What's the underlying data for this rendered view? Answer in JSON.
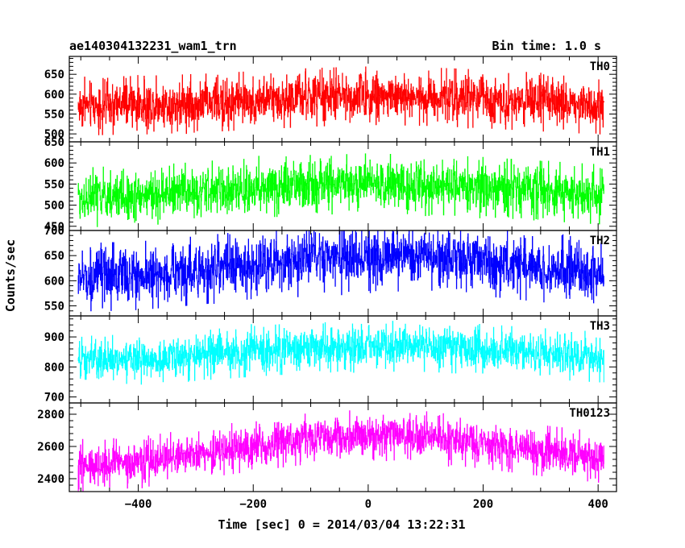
{
  "header": {
    "title": "ae140304132231_wam1_trn",
    "bin_time": "Bin time: 1.0 s"
  },
  "axes": {
    "xlabel": "Time [sec] 0 = 2014/03/04 13:22:31",
    "ylabel": "Counts/sec"
  },
  "chart_data": {
    "type": "line",
    "title": "ae140304132231_wam1_trn",
    "subtitle": "Bin time: 1.0 s",
    "xlabel": "Time [sec] 0 = 2014/03/04 13:22:31",
    "ylabel": "Counts/sec",
    "xlim": [
      -520,
      432
    ],
    "x_data_range": [
      -505,
      410
    ],
    "x_ticks": [
      -400,
      -200,
      0,
      200,
      400
    ],
    "grid": false,
    "legend": "none",
    "panels": [
      {
        "name": "TH0",
        "color": "#ff0000",
        "ylim": [
          480,
          695
        ],
        "y_ticks": [
          500,
          550,
          600,
          650
        ],
        "y_tick_labels": [
          "500",
          "550",
          "600",
          "650"
        ],
        "trend_x": [
          -505,
          -400,
          -300,
          -200,
          -100,
          0,
          100,
          200,
          300,
          410
        ],
        "trend_y": [
          570,
          572,
          577,
          584,
          592,
          596,
          594,
          588,
          580,
          572
        ],
        "noise_amplitude": 28,
        "sample_min": 478,
        "sample_max": 698
      },
      {
        "name": "TH1",
        "color": "#00ff00",
        "ylim": [
          440,
          650
        ],
        "y_ticks": [
          450,
          500,
          550,
          600,
          650
        ],
        "y_tick_labels": [
          "450",
          "500",
          "550",
          "600",
          "650"
        ],
        "trend_x": [
          -505,
          -400,
          -300,
          -200,
          -100,
          0,
          100,
          200,
          300,
          410
        ],
        "trend_y": [
          518,
          522,
          531,
          540,
          548,
          551,
          549,
          543,
          534,
          525
        ],
        "noise_amplitude": 27,
        "sample_min": 438,
        "sample_max": 652
      },
      {
        "name": "TH2",
        "color": "#0000ff",
        "ylim": [
          530,
          700
        ],
        "y_ticks": [
          550,
          600,
          650,
          700
        ],
        "y_tick_labels": [
          "550",
          "600",
          "650",
          "700"
        ],
        "trend_x": [
          -505,
          -400,
          -300,
          -200,
          -100,
          0,
          100,
          200,
          300,
          410
        ],
        "trend_y": [
          606,
          610,
          620,
          632,
          643,
          648,
          646,
          638,
          626,
          614
        ],
        "noise_amplitude": 26,
        "sample_min": 528,
        "sample_max": 702
      },
      {
        "name": "TH3",
        "color": "#00ffff",
        "ylim": [
          680,
          970
        ],
        "y_ticks": [
          700,
          800,
          900
        ],
        "y_tick_labels": [
          "700",
          "800",
          "900"
        ],
        "trend_x": [
          -505,
          -400,
          -300,
          -200,
          -100,
          0,
          100,
          200,
          300,
          410
        ],
        "trend_y": [
          818,
          825,
          838,
          852,
          864,
          870,
          868,
          858,
          845,
          832
        ],
        "noise_amplitude": 32,
        "sample_min": 690,
        "sample_max": 972
      },
      {
        "name": "TH0123",
        "color": "#ff00ff",
        "ylim": [
          2320,
          2870
        ],
        "y_ticks": [
          2400,
          2600,
          2800
        ],
        "y_tick_labels": [
          "2400",
          "2600",
          "2800"
        ],
        "trend_x": [
          -505,
          -400,
          -300,
          -200,
          -100,
          0,
          100,
          200,
          300,
          410
        ],
        "trend_y": [
          2470,
          2500,
          2555,
          2605,
          2650,
          2672,
          2660,
          2620,
          2575,
          2530
        ],
        "noise_amplitude": 60,
        "sample_min": 2325,
        "sample_max": 2872
      }
    ]
  }
}
